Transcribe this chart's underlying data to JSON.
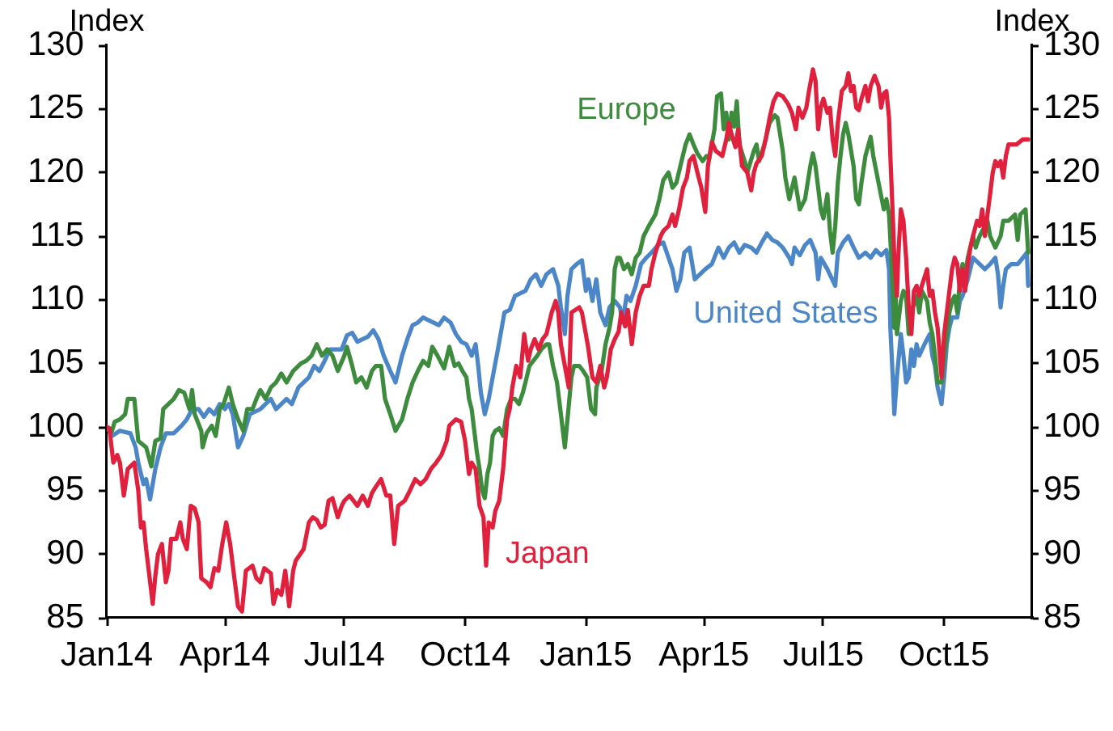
{
  "chart_data": {
    "type": "line",
    "ylabel": "Index",
    "y2label": "Index",
    "xlim": [
      "2014-01-01",
      "2015-12-07"
    ],
    "xticks": [
      {
        "value": "2014-01-01",
        "label": "Jan14"
      },
      {
        "value": "2014-04-01",
        "label": "Apr14"
      },
      {
        "value": "2014-07-01",
        "label": "Jul14"
      },
      {
        "value": "2014-10-01",
        "label": "Oct14"
      },
      {
        "value": "2015-01-01",
        "label": "Jan15"
      },
      {
        "value": "2015-04-01",
        "label": "Apr15"
      },
      {
        "value": "2015-07-01",
        "label": "Jul15"
      },
      {
        "value": "2015-10-01",
        "label": "Oct15"
      }
    ],
    "ylim": [
      85,
      130
    ],
    "yticks": [
      85,
      90,
      95,
      100,
      105,
      110,
      115,
      120,
      125,
      130
    ],
    "y2lim": [
      85,
      130
    ],
    "y2ticks": [
      85,
      90,
      95,
      100,
      105,
      110,
      115,
      120,
      125,
      130
    ],
    "series": [
      {
        "name": "Japan",
        "color": "#e0203c",
        "x": [
          "2014-01-01",
          "2014-01-03",
          "2014-01-06",
          "2014-01-09",
          "2014-01-11",
          "2014-01-14",
          "2014-01-17",
          "2014-01-22",
          "2014-01-25",
          "2014-01-27",
          "2014-01-29",
          "2014-01-31",
          "2014-02-02",
          "2014-02-05",
          "2014-02-07",
          "2014-02-09",
          "2014-02-12",
          "2014-02-15",
          "2014-02-17",
          "2014-02-19",
          "2014-02-23",
          "2014-02-26",
          "2014-02-28",
          "2014-03-03",
          "2014-03-06",
          "2014-03-09",
          "2014-03-12",
          "2014-03-14",
          "2014-03-18",
          "2014-03-21",
          "2014-03-24",
          "2014-03-27",
          "2014-03-30",
          "2014-04-02",
          "2014-04-05",
          "2014-04-08",
          "2014-04-11",
          "2014-04-14",
          "2014-04-17",
          "2014-04-22",
          "2014-04-25",
          "2014-04-28",
          "2014-05-01",
          "2014-05-06",
          "2014-05-08",
          "2014-05-11",
          "2014-05-14",
          "2014-05-17",
          "2014-05-20",
          "2014-05-23",
          "2014-05-25",
          "2014-05-31",
          "2014-06-04",
          "2014-06-07",
          "2014-06-10",
          "2014-06-13",
          "2014-06-16",
          "2014-06-19",
          "2014-06-22",
          "2014-06-26",
          "2014-06-29",
          "2014-07-01",
          "2014-07-05",
          "2014-07-11",
          "2014-07-15",
          "2014-07-19",
          "2014-07-22",
          "2014-07-25",
          "2014-07-29",
          "2014-08-02",
          "2014-08-05",
          "2014-08-08",
          "2014-08-11",
          "2014-08-16",
          "2014-08-20",
          "2014-08-24",
          "2014-08-28",
          "2014-09-01",
          "2014-09-05",
          "2014-09-09",
          "2014-09-13",
          "2014-09-17",
          "2014-09-19",
          "2014-09-24",
          "2014-09-28",
          "2014-10-01",
          "2014-10-04",
          "2014-10-06",
          "2014-10-09",
          "2014-10-12",
          "2014-10-15",
          "2014-10-17",
          "2014-10-19",
          "2014-10-22",
          "2014-10-24",
          "2014-10-27",
          "2014-10-30",
          "2014-11-02",
          "2014-11-04",
          "2014-11-06",
          "2014-11-09",
          "2014-11-12",
          "2014-11-15",
          "2014-11-18",
          "2014-11-20",
          "2014-11-23",
          "2014-11-26",
          "2014-11-29",
          "2014-12-02",
          "2014-12-06",
          "2014-12-09",
          "2014-12-11",
          "2014-12-13",
          "2014-12-16",
          "2014-12-19",
          "2014-12-21",
          "2014-12-27",
          "2014-12-29",
          "2015-01-01",
          "2015-01-03",
          "2015-01-06",
          "2015-01-09",
          "2015-01-12",
          "2015-01-15",
          "2015-01-17",
          "2015-01-20",
          "2015-01-23",
          "2015-01-26",
          "2015-01-28",
          "2015-01-31",
          "2015-02-02",
          "2015-02-05",
          "2015-02-08",
          "2015-02-11",
          "2015-02-14",
          "2015-02-18",
          "2015-02-20",
          "2015-02-23",
          "2015-02-27",
          "2015-03-01",
          "2015-03-05",
          "2015-03-08",
          "2015-03-10",
          "2015-03-13",
          "2015-03-16",
          "2015-03-19",
          "2015-03-21",
          "2015-03-24",
          "2015-03-27",
          "2015-03-30",
          "2015-04-02",
          "2015-04-04",
          "2015-04-07",
          "2015-04-10",
          "2015-04-15",
          "2015-04-18",
          "2015-04-20",
          "2015-04-22",
          "2015-04-25",
          "2015-04-27",
          "2015-04-30",
          "2015-05-04",
          "2015-05-07",
          "2015-05-09",
          "2015-05-11",
          "2015-05-15",
          "2015-05-18",
          "2015-05-21",
          "2015-05-24",
          "2015-05-27",
          "2015-05-31",
          "2015-06-04",
          "2015-06-07",
          "2015-06-10",
          "2015-06-12",
          "2015-06-15",
          "2015-06-18",
          "2015-06-20",
          "2015-06-23",
          "2015-06-25",
          "2015-06-27",
          "2015-06-29",
          "2015-07-01",
          "2015-07-04",
          "2015-07-06",
          "2015-07-08",
          "2015-07-10",
          "2015-07-12",
          "2015-07-15",
          "2015-07-18",
          "2015-07-20",
          "2015-07-22",
          "2015-07-24",
          "2015-07-26",
          "2015-07-28",
          "2015-07-30",
          "2015-08-02",
          "2015-08-04",
          "2015-08-06",
          "2015-08-09",
          "2015-08-12",
          "2015-08-14",
          "2015-08-16",
          "2015-08-18",
          "2015-08-20",
          "2015-08-21",
          "2015-08-23",
          "2015-08-24",
          "2015-08-26",
          "2015-08-27",
          "2015-08-29",
          "2015-08-31",
          "2015-09-02",
          "2015-09-04",
          "2015-09-06",
          "2015-09-08",
          "2015-09-10",
          "2015-09-12",
          "2015-09-14",
          "2015-09-18",
          "2015-09-20",
          "2015-09-22",
          "2015-09-24",
          "2015-09-26",
          "2015-09-29",
          "2015-10-01",
          "2015-10-03",
          "2015-10-05",
          "2015-10-07",
          "2015-10-09",
          "2015-10-11",
          "2015-10-13",
          "2015-10-15",
          "2015-10-17",
          "2015-10-19",
          "2015-10-21",
          "2015-10-23",
          "2015-10-26",
          "2015-10-28",
          "2015-10-30",
          "2015-11-01",
          "2015-11-03",
          "2015-11-05",
          "2015-11-07",
          "2015-11-09",
          "2015-11-11",
          "2015-11-13",
          "2015-11-15",
          "2015-11-17",
          "2015-11-19",
          "2015-11-25",
          "2015-11-30",
          "2015-12-04"
        ],
        "values": [
          100,
          99.9,
          97.2,
          97.8,
          97.2,
          94.6,
          96.7,
          97.2,
          95.0,
          92.1,
          92.5,
          90.4,
          88.7,
          86.1,
          88.3,
          90.0,
          90.8,
          87.8,
          88.7,
          91.2,
          91.2,
          92.5,
          91.2,
          90.4,
          93.8,
          93.6,
          92.5,
          88.1,
          87.8,
          87.4,
          88.9,
          88.7,
          90.8,
          92.5,
          90.8,
          88.3,
          85.9,
          85.5,
          88.7,
          89.1,
          88.1,
          87.8,
          88.9,
          88.5,
          86.1,
          87.2,
          86.8,
          88.7,
          85.9,
          88.7,
          89.5,
          90.4,
          92.5,
          92.9,
          92.7,
          92.1,
          92.3,
          94.2,
          94.4,
          92.9,
          93.8,
          94.2,
          94.6,
          93.8,
          94.6,
          93.8,
          94.8,
          95.3,
          95.9,
          94.6,
          94.6,
          90.8,
          93.8,
          94.2,
          95.0,
          95.9,
          95.5,
          95.9,
          96.7,
          97.2,
          97.8,
          98.9,
          100.1,
          100.6,
          100.4,
          98.9,
          96.3,
          97.2,
          96.7,
          93.8,
          92.9,
          89.1,
          92.5,
          92.1,
          93.4,
          94.2,
          96.7,
          100.6,
          101.4,
          103.1,
          104.8,
          103.9,
          107.3,
          105.2,
          106.1,
          106.9,
          106.1,
          106.9,
          107.3,
          109.0,
          109.9,
          109.0,
          106.5,
          104.8,
          103.1,
          109.0,
          109.4,
          109.0,
          107.3,
          106.1,
          103.9,
          103.5,
          104.8,
          103.1,
          103.9,
          106.1,
          106.9,
          107.5,
          109.0,
          107.9,
          109.2,
          106.5,
          109.0,
          110.3,
          111.1,
          111.1,
          112.4,
          113.7,
          115.0,
          115.4,
          115.8,
          116.7,
          115.8,
          117.1,
          118.8,
          119.6,
          120.9,
          121.3,
          120.0,
          118.8,
          116.9,
          120.5,
          122.4,
          121.7,
          121.3,
          122.6,
          123.9,
          123.0,
          122.0,
          123.4,
          120.5,
          120.0,
          118.6,
          120.0,
          120.7,
          121.3,
          122.6,
          124.3,
          125.6,
          126.2,
          126.0,
          125.4,
          124.7,
          123.4,
          125.1,
          124.3,
          125.1,
          126.4,
          128.1,
          127.2,
          123.4,
          125.1,
          125.8,
          124.7,
          125.1,
          122.6,
          121.3,
          123.9,
          126.4,
          126.8,
          127.8,
          126.4,
          126.8,
          125.1,
          124.9,
          125.8,
          126.8,
          125.6,
          126.8,
          127.6,
          126.8,
          125.1,
          126.2,
          126.4,
          124.3,
          121.3,
          116.2,
          113.3,
          110.3,
          113.3,
          117.1,
          116.2,
          113.3,
          109.4,
          107.3,
          110.7,
          111.1,
          110.3,
          111.1,
          112.4,
          110.3,
          110.7,
          109.0,
          107.8,
          103.9,
          107.3,
          109.0,
          110.7,
          112.4,
          113.3,
          112.8,
          110.7,
          112.4,
          110.7,
          112.8,
          114.1,
          115.0,
          116.2,
          115.8,
          117.1,
          115.0,
          116.7,
          118.3,
          120.0,
          120.9,
          120.5,
          120.9,
          119.6,
          121.3,
          122.2,
          122.2,
          122.6,
          122.6
        ]
      },
      {
        "name": "Europe",
        "color": "#3d8c3d",
        "x": [
          "2014-01-01",
          "2014-01-05",
          "2014-01-07",
          "2014-01-11",
          "2014-01-15",
          "2014-01-17",
          "2014-01-22",
          "2014-01-25",
          "2014-01-31",
          "2014-02-04",
          "2014-02-07",
          "2014-02-11",
          "2014-02-13",
          "2014-02-17",
          "2014-02-21",
          "2014-02-25",
          "2014-03-01",
          "2014-03-05",
          "2014-03-07",
          "2014-03-09",
          "2014-03-14",
          "2014-03-15",
          "2014-03-18",
          "2014-03-22",
          "2014-03-25",
          "2014-03-28",
          "2014-03-31",
          "2014-04-04",
          "2014-04-07",
          "2014-04-11",
          "2014-04-15",
          "2014-04-18",
          "2014-04-22",
          "2014-04-25",
          "2014-04-28",
          "2014-05-02",
          "2014-05-06",
          "2014-05-10",
          "2014-05-14",
          "2014-05-18",
          "2014-05-23",
          "2014-05-29",
          "2014-06-02",
          "2014-06-06",
          "2014-06-10",
          "2014-06-14",
          "2014-06-18",
          "2014-06-22",
          "2014-06-26",
          "2014-07-01",
          "2014-07-03",
          "2014-07-07",
          "2014-07-10",
          "2014-07-14",
          "2014-07-18",
          "2014-07-22",
          "2014-07-25",
          "2014-07-29",
          "2014-08-01",
          "2014-08-05",
          "2014-08-09",
          "2014-08-14",
          "2014-08-18",
          "2014-08-22",
          "2014-08-26",
          "2014-08-30",
          "2014-09-03",
          "2014-09-06",
          "2014-09-10",
          "2014-09-15",
          "2014-09-19",
          "2014-09-23",
          "2014-09-26",
          "2014-09-29",
          "2014-10-02",
          "2014-10-04",
          "2014-10-06",
          "2014-10-08",
          "2014-10-10",
          "2014-10-12",
          "2014-10-14",
          "2014-10-16",
          "2014-10-18",
          "2014-10-20",
          "2014-10-22",
          "2014-10-24",
          "2014-10-27",
          "2014-10-30",
          "2014-11-02",
          "2014-11-05",
          "2014-11-08",
          "2014-11-11",
          "2014-11-14",
          "2014-11-16",
          "2014-11-19",
          "2014-11-22",
          "2014-11-25",
          "2014-11-28",
          "2014-12-02",
          "2014-12-04",
          "2014-12-07",
          "2014-12-10",
          "2014-12-13",
          "2014-12-16",
          "2014-12-18",
          "2014-12-21",
          "2014-12-23",
          "2014-12-27",
          "2014-12-30",
          "2015-01-02",
          "2015-01-05",
          "2015-01-08",
          "2015-01-09",
          "2015-01-13",
          "2015-01-16",
          "2015-01-19",
          "2015-01-21",
          "2015-01-23",
          "2015-01-25",
          "2015-01-27",
          "2015-01-30",
          "2015-02-02",
          "2015-02-05",
          "2015-02-08",
          "2015-02-11",
          "2015-02-14",
          "2015-02-18",
          "2015-02-23",
          "2015-02-26",
          "2015-03-01",
          "2015-03-05",
          "2015-03-08",
          "2015-03-11",
          "2015-03-14",
          "2015-03-18",
          "2015-03-21",
          "2015-03-24",
          "2015-03-27",
          "2015-03-31",
          "2015-04-03",
          "2015-04-05",
          "2015-04-09",
          "2015-04-11",
          "2015-04-14",
          "2015-04-16",
          "2015-04-18",
          "2015-04-20",
          "2015-04-22",
          "2015-04-24",
          "2015-04-26",
          "2015-04-28",
          "2015-05-02",
          "2015-05-04",
          "2015-05-09",
          "2015-05-11",
          "2015-05-13",
          "2015-05-17",
          "2015-05-21",
          "2015-05-25",
          "2015-05-27",
          "2015-05-31",
          "2015-06-02",
          "2015-06-05",
          "2015-06-09",
          "2015-06-13",
          "2015-06-17",
          "2015-06-21",
          "2015-06-23",
          "2015-06-25",
          "2015-06-29",
          "2015-07-01",
          "2015-07-04",
          "2015-07-06",
          "2015-07-08",
          "2015-07-10",
          "2015-07-12",
          "2015-07-14",
          "2015-07-16",
          "2015-07-18",
          "2015-07-20",
          "2015-07-24",
          "2015-07-26",
          "2015-07-28",
          "2015-07-30",
          "2015-08-02",
          "2015-08-06",
          "2015-08-08",
          "2015-08-12",
          "2015-08-16",
          "2015-08-18",
          "2015-08-20",
          "2015-08-22",
          "2015-08-24",
          "2015-08-25",
          "2015-08-26",
          "2015-08-29",
          "2015-08-31",
          "2015-09-02",
          "2015-09-04",
          "2015-09-06",
          "2015-09-10",
          "2015-09-12",
          "2015-09-14",
          "2015-09-18",
          "2015-09-20",
          "2015-09-22",
          "2015-09-24",
          "2015-09-26",
          "2015-09-29",
          "2015-10-01",
          "2015-10-03",
          "2015-10-05",
          "2015-10-07",
          "2015-10-09",
          "2015-10-11",
          "2015-10-13",
          "2015-10-15",
          "2015-10-17",
          "2015-10-19",
          "2015-10-23",
          "2015-10-25",
          "2015-10-28",
          "2015-11-01",
          "2015-11-03",
          "2015-11-05",
          "2015-11-09",
          "2015-11-13",
          "2015-11-15",
          "2015-11-19",
          "2015-11-24",
          "2015-11-26",
          "2015-11-28",
          "2015-12-02",
          "2015-12-04"
        ],
        "values": [
          100,
          99.7,
          100.4,
          100.6,
          101.0,
          102.2,
          102.2,
          98.9,
          98.4,
          96.9,
          98.9,
          99.1,
          101.4,
          101.8,
          102.2,
          102.9,
          102.7,
          101.4,
          102.9,
          101.0,
          99.7,
          98.4,
          99.5,
          100.1,
          99.3,
          101.4,
          101.8,
          103.1,
          101.8,
          100.6,
          99.7,
          101.4,
          101.4,
          102.2,
          102.9,
          102.2,
          103.1,
          103.5,
          104.2,
          103.5,
          104.4,
          105.0,
          105.2,
          105.6,
          106.5,
          105.6,
          106.1,
          105.6,
          104.4,
          105.6,
          106.3,
          104.8,
          103.5,
          103.9,
          103.1,
          104.4,
          104.8,
          104.8,
          102.2,
          101.0,
          99.7,
          100.6,
          102.2,
          103.5,
          104.4,
          105.2,
          104.8,
          106.3,
          105.6,
          104.6,
          106.3,
          104.8,
          105.0,
          104.4,
          103.9,
          102.2,
          101.4,
          99.7,
          98.0,
          96.7,
          95.0,
          94.4,
          96.3,
          97.2,
          99.3,
          99.7,
          99.9,
          99.3,
          101.4,
          102.2,
          102.2,
          101.8,
          102.7,
          103.5,
          104.8,
          105.2,
          105.6,
          106.1,
          106.5,
          106.5,
          104.8,
          103.5,
          101.0,
          98.4,
          100.6,
          103.9,
          104.8,
          104.8,
          104.4,
          103.9,
          101.4,
          101.0,
          103.1,
          104.4,
          106.5,
          107.8,
          109.0,
          112.4,
          113.3,
          113.3,
          112.4,
          112.8,
          112.0,
          113.3,
          113.7,
          115.0,
          115.8,
          116.7,
          117.9,
          119.4,
          120.0,
          118.8,
          119.2,
          120.5,
          122.2,
          123.0,
          122.2,
          121.5,
          120.9,
          121.3,
          121.1,
          123.4,
          126.0,
          126.2,
          123.4,
          124.7,
          122.6,
          124.7,
          123.6,
          125.6,
          122.2,
          120.9,
          120.0,
          121.7,
          122.2,
          120.9,
          122.2,
          123.9,
          124.5,
          124.3,
          121.7,
          119.6,
          117.9,
          119.6,
          117.1,
          117.9,
          120.5,
          121.5,
          120.5,
          117.1,
          116.4,
          118.3,
          115.4,
          113.7,
          115.8,
          119.2,
          121.3,
          123.0,
          123.9,
          123.0,
          120.5,
          117.9,
          117.5,
          119.2,
          121.3,
          122.8,
          121.3,
          119.2,
          117.1,
          117.9,
          116.7,
          112.8,
          107.8,
          110.3,
          107.3,
          109.9,
          110.7,
          110.3,
          107.3,
          109.0,
          110.3,
          109.0,
          110.7,
          109.9,
          108.2,
          107.3,
          105.6,
          103.5,
          103.5,
          105.6,
          107.3,
          109.0,
          109.9,
          110.3,
          109.0,
          111.6,
          112.8,
          112.0,
          113.3,
          115.0,
          114.1,
          115.0,
          115.8,
          116.2,
          115.0,
          114.1,
          115.0,
          116.2,
          116.2,
          116.7,
          114.7,
          116.7,
          117.1,
          113.7
        ]
      },
      {
        "name": "United States",
        "color": "#4a86c8",
        "x": [
          "2014-01-01",
          "2014-01-05",
          "2014-01-11",
          "2014-01-19",
          "2014-01-23",
          "2014-01-25",
          "2014-01-29",
          "2014-01-31",
          "2014-02-03",
          "2014-02-07",
          "2014-02-11",
          "2014-02-15",
          "2014-02-21",
          "2014-02-27",
          "2014-03-03",
          "2014-03-07",
          "2014-03-12",
          "2014-03-16",
          "2014-03-20",
          "2014-03-24",
          "2014-03-28",
          "2014-04-01",
          "2014-04-04",
          "2014-04-07",
          "2014-04-11",
          "2014-04-15",
          "2014-04-20",
          "2014-04-28",
          "2014-05-06",
          "2014-05-10",
          "2014-05-18",
          "2014-05-22",
          "2014-05-27",
          "2014-06-04",
          "2014-06-08",
          "2014-06-12",
          "2014-06-16",
          "2014-06-20",
          "2014-06-29",
          "2014-07-03",
          "2014-07-07",
          "2014-07-11",
          "2014-07-15",
          "2014-07-19",
          "2014-07-23",
          "2014-07-27",
          "2014-07-31",
          "2014-08-05",
          "2014-08-09",
          "2014-08-14",
          "2014-08-18",
          "2014-08-22",
          "2014-08-26",
          "2014-08-30",
          "2014-09-03",
          "2014-09-11",
          "2014-09-15",
          "2014-09-20",
          "2014-09-24",
          "2014-09-28",
          "2014-10-02",
          "2014-10-06",
          "2014-10-09",
          "2014-10-11",
          "2014-10-13",
          "2014-10-16",
          "2014-10-19",
          "2014-10-22",
          "2014-10-26",
          "2014-10-31",
          "2014-11-04",
          "2014-11-08",
          "2014-11-16",
          "2014-11-20",
          "2014-11-24",
          "2014-11-28",
          "2014-12-02",
          "2014-12-07",
          "2014-12-11",
          "2014-12-13",
          "2014-12-16",
          "2014-12-18",
          "2014-12-21",
          "2014-12-25",
          "2014-12-29",
          "2015-01-01",
          "2015-01-03",
          "2015-01-06",
          "2015-01-09",
          "2015-01-12",
          "2015-01-16",
          "2015-01-19",
          "2015-01-23",
          "2015-01-27",
          "2015-01-29",
          "2015-02-01",
          "2015-02-04",
          "2015-02-08",
          "2015-02-12",
          "2015-02-16",
          "2015-02-20",
          "2015-02-25",
          "2015-03-01",
          "2015-03-05",
          "2015-03-08",
          "2015-03-11",
          "2015-03-14",
          "2015-03-17",
          "2015-03-21",
          "2015-03-25",
          "2015-03-29",
          "2015-04-02",
          "2015-04-07",
          "2015-04-12",
          "2015-04-16",
          "2015-04-20",
          "2015-04-24",
          "2015-04-28",
          "2015-05-02",
          "2015-05-07",
          "2015-05-11",
          "2015-05-15",
          "2015-05-19",
          "2015-05-23",
          "2015-05-27",
          "2015-05-31",
          "2015-06-05",
          "2015-06-07",
          "2015-06-09",
          "2015-06-13",
          "2015-06-17",
          "2015-06-21",
          "2015-06-25",
          "2015-06-27",
          "2015-06-29",
          "2015-07-04",
          "2015-07-10",
          "2015-07-12",
          "2015-07-16",
          "2015-07-20",
          "2015-07-24",
          "2015-07-28",
          "2015-08-02",
          "2015-08-06",
          "2015-08-10",
          "2015-08-14",
          "2015-08-18",
          "2015-08-20",
          "2015-08-21",
          "2015-08-23",
          "2015-08-24",
          "2015-08-26",
          "2015-08-29",
          "2015-08-31",
          "2015-09-02",
          "2015-09-04",
          "2015-09-06",
          "2015-09-08",
          "2015-09-10",
          "2015-09-12",
          "2015-09-16",
          "2015-09-20",
          "2015-09-22",
          "2015-09-24",
          "2015-09-26",
          "2015-09-29",
          "2015-10-01",
          "2015-10-03",
          "2015-10-05",
          "2015-10-07",
          "2015-10-11",
          "2015-10-13",
          "2015-10-15",
          "2015-10-19",
          "2015-10-23",
          "2015-10-28",
          "2015-11-01",
          "2015-11-05",
          "2015-11-09",
          "2015-11-11",
          "2015-11-13",
          "2015-11-15",
          "2015-11-17",
          "2015-11-21",
          "2015-11-26",
          "2015-11-30",
          "2015-12-03",
          "2015-12-04"
        ],
        "values": [
          100,
          99.3,
          99.7,
          99.5,
          98.4,
          97.2,
          95.5,
          95.9,
          94.3,
          96.7,
          98.4,
          99.5,
          99.5,
          100.1,
          100.6,
          101.4,
          101.4,
          100.8,
          101.4,
          101.0,
          101.8,
          101.4,
          101.8,
          101.0,
          98.4,
          99.3,
          101.0,
          101.4,
          102.2,
          101.4,
          102.2,
          101.8,
          103.1,
          103.9,
          104.8,
          104.4,
          105.2,
          106.1,
          106.1,
          107.2,
          107.4,
          106.7,
          106.9,
          107.1,
          107.6,
          106.9,
          105.6,
          104.4,
          103.5,
          105.6,
          106.9,
          108.0,
          108.2,
          108.6,
          108.4,
          108.0,
          108.6,
          108.2,
          107.3,
          106.7,
          106.5,
          105.6,
          106.5,
          104.8,
          102.7,
          101.0,
          102.2,
          103.9,
          106.1,
          109.0,
          109.2,
          110.3,
          110.7,
          111.6,
          112.0,
          111.1,
          112.0,
          112.4,
          111.1,
          109.4,
          107.3,
          110.3,
          112.4,
          112.8,
          113.1,
          110.7,
          111.6,
          109.9,
          111.6,
          109.0,
          108.0,
          109.4,
          109.9,
          109.4,
          108.2,
          110.3,
          109.9,
          111.1,
          112.8,
          113.3,
          113.7,
          114.3,
          114.5,
          113.3,
          112.4,
          110.7,
          111.6,
          113.7,
          114.1,
          111.6,
          112.0,
          112.4,
          112.8,
          114.1,
          113.3,
          114.1,
          114.5,
          113.7,
          114.3,
          114.1,
          113.7,
          114.5,
          115.2,
          114.7,
          114.5,
          114.1,
          113.3,
          112.8,
          114.1,
          113.5,
          114.3,
          114.7,
          113.7,
          111.6,
          113.3,
          112.4,
          111.1,
          113.7,
          114.5,
          115.0,
          114.1,
          113.3,
          113.7,
          113.3,
          113.9,
          113.5,
          113.9,
          112.4,
          107.8,
          103.5,
          101.0,
          103.9,
          107.3,
          105.6,
          103.5,
          103.9,
          106.1,
          104.8,
          106.5,
          105.6,
          106.5,
          107.3,
          105.6,
          104.8,
          103.1,
          101.8,
          103.9,
          106.5,
          107.8,
          108.6,
          108.6,
          109.9,
          110.3,
          111.6,
          113.3,
          112.8,
          112.4,
          112.8,
          113.3,
          112.0,
          109.4,
          111.1,
          112.4,
          112.8,
          112.8,
          113.3,
          113.7,
          111.1
        ]
      }
    ]
  }
}
